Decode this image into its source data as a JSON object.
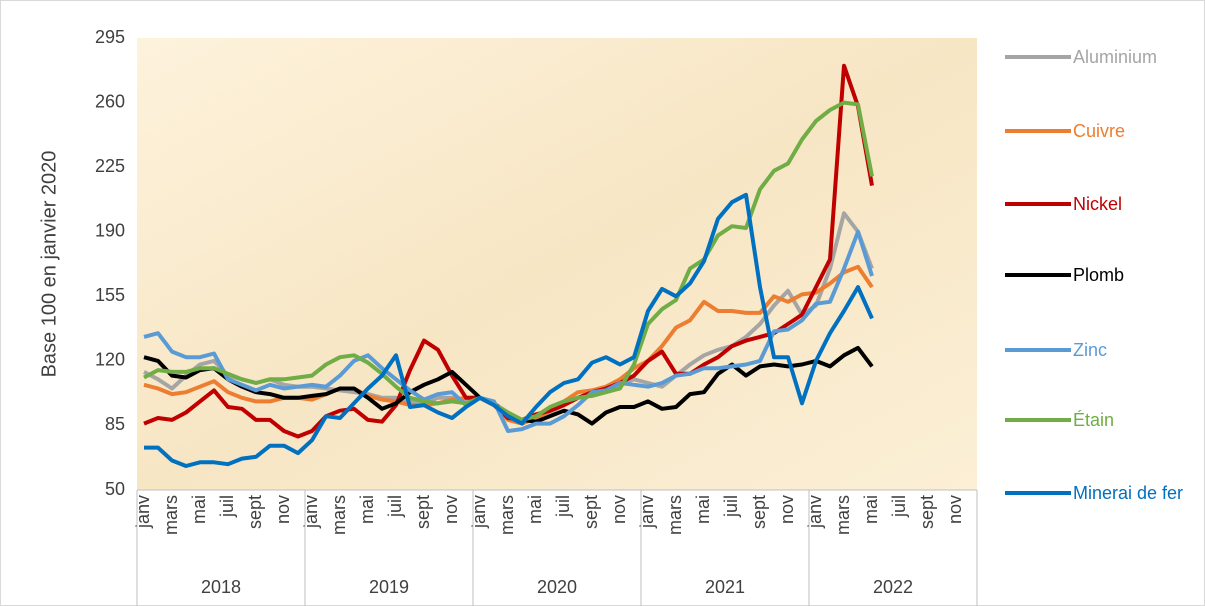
{
  "chart_data": {
    "type": "line",
    "ylabel": "Base 100 en janvier 2020",
    "categories": [
      "janv",
      null,
      "mars",
      null,
      "mai",
      null,
      "juil",
      null,
      "sept",
      null,
      "nov",
      null,
      "janv",
      null,
      "mars",
      null,
      "mai",
      null,
      "juil",
      null,
      "sept",
      null,
      "nov",
      null,
      "janv",
      null,
      "mars",
      null,
      "mai",
      null,
      "juil",
      null,
      "sept",
      null,
      "nov",
      null,
      "janv",
      null,
      "mars",
      null,
      "mai",
      null,
      "juil",
      null,
      "sept",
      null,
      "nov",
      null,
      "janv",
      null,
      "mars",
      null,
      "mai",
      null,
      "juil",
      null,
      "sept",
      null,
      "nov",
      null
    ],
    "x_groups": [
      "2018",
      "2019",
      "2020",
      "2021",
      "2022"
    ],
    "ylim": [
      50,
      295
    ],
    "yticks": [
      50,
      85,
      120,
      155,
      190,
      225,
      260,
      295
    ],
    "grid": false,
    "legend": "right",
    "series": [
      {
        "name": "Aluminium",
        "color": "#a5a5a5",
        "values": [
          114,
          110,
          105,
          112,
          118,
          120,
          112,
          110,
          108,
          110,
          107,
          106,
          106,
          105,
          104,
          103,
          102,
          100,
          100,
          98,
          97,
          100,
          100,
          99,
          100,
          97,
          92,
          88,
          88,
          92,
          96,
          100,
          103,
          104,
          107,
          110,
          108,
          106,
          112,
          118,
          123,
          126,
          128,
          133,
          140,
          150,
          158,
          145,
          150,
          170,
          200,
          190,
          170,
          null,
          null,
          null,
          null,
          null,
          null,
          null
        ]
      },
      {
        "name": "Cuivre",
        "color": "#ed7d31",
        "values": [
          107,
          105,
          102,
          103,
          106,
          109,
          103,
          100,
          98,
          98,
          100,
          100,
          99,
          102,
          105,
          105,
          101,
          99,
          98,
          96,
          96,
          97,
          99,
          100,
          100,
          97,
          88,
          86,
          89,
          93,
          98,
          103,
          104,
          106,
          110,
          116,
          120,
          128,
          138,
          142,
          152,
          147,
          147,
          146,
          146,
          155,
          152,
          156,
          157,
          162,
          168,
          171,
          160,
          null,
          null,
          null,
          null,
          null,
          null,
          null
        ]
      },
      {
        "name": "Nickel",
        "color": "#c00000",
        "values": [
          86,
          89,
          88,
          92,
          98,
          104,
          95,
          94,
          88,
          88,
          82,
          79,
          82,
          90,
          93,
          94,
          88,
          87,
          96,
          115,
          131,
          126,
          112,
          100,
          100,
          96,
          89,
          88,
          91,
          93,
          96,
          100,
          103,
          105,
          108,
          112,
          120,
          125,
          113,
          113,
          118,
          122,
          128,
          131,
          133,
          135,
          140,
          145,
          160,
          175,
          280,
          258,
          215,
          null,
          null,
          null,
          null,
          null,
          null,
          null
        ]
      },
      {
        "name": "Plomb",
        "color": "#000000",
        "values": [
          122,
          120,
          112,
          111,
          115,
          116,
          110,
          106,
          103,
          102,
          100,
          100,
          101,
          102,
          105,
          105,
          100,
          94,
          97,
          103,
          107,
          110,
          114,
          107,
          100,
          97,
          90,
          88,
          87,
          90,
          93,
          91,
          86,
          92,
          95,
          95,
          98,
          94,
          95,
          102,
          103,
          113,
          118,
          112,
          117,
          118,
          117,
          118,
          120,
          117,
          123,
          127,
          117,
          null,
          null,
          null,
          null,
          null,
          null,
          null
        ]
      },
      {
        "name": "Zinc",
        "color": "#5b9bd5",
        "values": [
          133,
          135,
          125,
          122,
          122,
          124,
          110,
          107,
          104,
          107,
          105,
          106,
          107,
          106,
          112,
          120,
          123,
          116,
          110,
          104,
          99,
          102,
          103,
          96,
          100,
          98,
          82,
          83,
          86,
          86,
          90,
          96,
          103,
          104,
          108,
          107,
          106,
          108,
          112,
          113,
          116,
          116,
          117,
          118,
          120,
          136,
          137,
          142,
          151,
          152,
          170,
          190,
          166,
          null,
          null,
          null,
          null,
          null,
          null,
          null
        ]
      },
      {
        "name": "Étain",
        "color": "#70ad47",
        "values": [
          111,
          115,
          114,
          114,
          116,
          116,
          113,
          110,
          108,
          110,
          110,
          111,
          112,
          118,
          122,
          123,
          119,
          113,
          106,
          100,
          98,
          97,
          98,
          97,
          100,
          96,
          92,
          88,
          90,
          95,
          98,
          100,
          101,
          103,
          105,
          118,
          140,
          148,
          153,
          170,
          175,
          188,
          193,
          192,
          213,
          223,
          227,
          240,
          250,
          256,
          260,
          259,
          220,
          null,
          null,
          null,
          null,
          null,
          null,
          null
        ]
      },
      {
        "name": "Minerai de fer",
        "color": "#0070c0",
        "values": [
          73,
          73,
          66,
          63,
          65,
          65,
          64,
          67,
          68,
          74,
          74,
          70,
          77,
          90,
          89,
          97,
          105,
          112,
          123,
          95,
          96,
          92,
          89,
          95,
          100,
          96,
          90,
          86,
          95,
          103,
          108,
          110,
          119,
          122,
          118,
          122,
          147,
          159,
          155,
          162,
          174,
          197,
          206,
          210,
          160,
          122,
          122,
          97,
          120,
          135,
          147,
          160,
          143,
          null,
          null,
          null,
          null,
          null,
          null,
          null
        ]
      }
    ]
  }
}
